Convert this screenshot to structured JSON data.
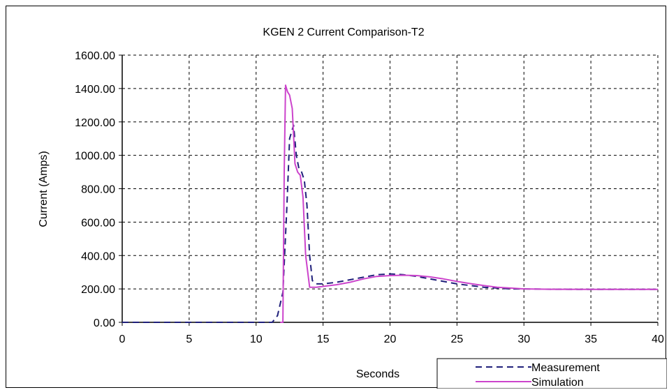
{
  "chart_data": {
    "type": "line",
    "title": "KGEN 2 Current Comparison-T2",
    "xlabel": "Seconds",
    "ylabel": "Current (Amps)",
    "xlim": [
      0,
      40
    ],
    "ylim": [
      0,
      1600
    ],
    "xticks": [
      0,
      5,
      10,
      15,
      20,
      25,
      30,
      35,
      40
    ],
    "xtick_labels": [
      "0",
      "5",
      "10",
      "15",
      "20",
      "25",
      "30",
      "35",
      "40"
    ],
    "yticks": [
      0,
      200,
      400,
      600,
      800,
      1000,
      1200,
      1400,
      1600
    ],
    "ytick_labels": [
      "0.00",
      "200.00",
      "400.00",
      "600.00",
      "800.00",
      "1000.00",
      "1200.00",
      "1400.00",
      "1600.00"
    ],
    "grid": true,
    "legend_position": "bottom-right",
    "series": [
      {
        "name": "Measurement",
        "color": "#1f1f7a",
        "dash": "dashed",
        "x": [
          0,
          0.8,
          1.0,
          11.2,
          11.6,
          12.0,
          12.3,
          12.5,
          12.8,
          13.0,
          13.2,
          13.4,
          13.6,
          13.8,
          14.0,
          14.2,
          14.5,
          15,
          16,
          17,
          18,
          19,
          20,
          21,
          22,
          23,
          24,
          25,
          26,
          27,
          28,
          29,
          30,
          32,
          35,
          38,
          40
        ],
        "y": [
          0,
          0,
          0,
          0,
          40,
          180,
          700,
          1100,
          1180,
          1000,
          920,
          900,
          850,
          700,
          400,
          250,
          230,
          230,
          240,
          255,
          270,
          285,
          290,
          285,
          275,
          260,
          245,
          230,
          220,
          210,
          205,
          200,
          200,
          198,
          197,
          197,
          197
        ]
      },
      {
        "name": "Simulation",
        "color": "#cc44cc",
        "dash": "solid",
        "x": [
          11.8,
          12.0,
          12.1,
          12.2,
          12.35,
          12.5,
          12.7,
          12.9,
          13.1,
          13.3,
          13.5,
          13.7,
          14.0,
          14.5,
          15,
          16,
          17,
          18,
          19,
          20,
          21,
          22,
          23,
          24,
          25,
          26,
          27,
          28,
          29,
          30,
          32,
          35,
          38,
          40
        ],
        "y": [
          0,
          0,
          900,
          1420,
          1380,
          1360,
          1280,
          950,
          900,
          880,
          750,
          400,
          210,
          210,
          215,
          225,
          240,
          260,
          275,
          280,
          282,
          280,
          272,
          260,
          245,
          232,
          220,
          210,
          205,
          200,
          198,
          197,
          197,
          197
        ]
      }
    ]
  }
}
